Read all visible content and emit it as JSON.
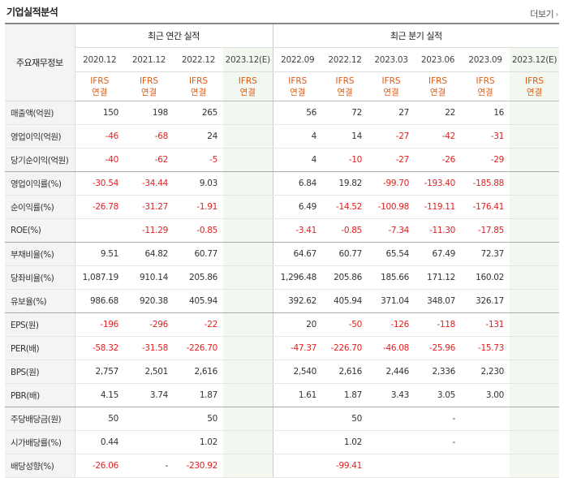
{
  "header": {
    "title": "기업실적분석",
    "more_label": "더보기",
    "more_arrow": "›"
  },
  "table": {
    "row_header_label": "주요재무정보",
    "annual_label": "최근 연간 실적",
    "quarter_label": "최근 분기 실적",
    "annual_dates": [
      "2020.12",
      "2021.12",
      "2022.12",
      "2023.12(E)"
    ],
    "quarter_dates": [
      "2022.09",
      "2022.12",
      "2023.03",
      "2023.06",
      "2023.09",
      "2023.12(E)"
    ],
    "ifrs_top": "IFRS",
    "ifrs_bottom": "연결",
    "rows": [
      {
        "label": "매출액(억원)",
        "values": [
          "150",
          "198",
          "265",
          "",
          "56",
          "72",
          "27",
          "22",
          "16",
          ""
        ]
      },
      {
        "label": "영업이익(억원)",
        "values": [
          "-46",
          "-68",
          "24",
          "",
          "4",
          "14",
          "-27",
          "-42",
          "-31",
          ""
        ]
      },
      {
        "label": "당기순이익(억원)",
        "values": [
          "-40",
          "-62",
          "-5",
          "",
          "4",
          "-10",
          "-27",
          "-26",
          "-29",
          ""
        ]
      },
      {
        "label": "영업이익률(%)",
        "values": [
          "-30.54",
          "-34.44",
          "9.03",
          "",
          "6.84",
          "19.82",
          "-99.70",
          "-193.40",
          "-185.88",
          ""
        ]
      },
      {
        "label": "순이익률(%)",
        "values": [
          "-26.78",
          "-31.27",
          "-1.91",
          "",
          "6.49",
          "-14.52",
          "-100.98",
          "-119.11",
          "-176.41",
          ""
        ]
      },
      {
        "label": "ROE(%)",
        "values": [
          "",
          "-11.29",
          "-0.85",
          "",
          "-3.41",
          "-0.85",
          "-7.34",
          "-11.30",
          "-17.85",
          ""
        ]
      },
      {
        "label": "부채비율(%)",
        "values": [
          "9.51",
          "64.82",
          "60.77",
          "",
          "64.67",
          "60.77",
          "65.54",
          "67.49",
          "72.37",
          ""
        ]
      },
      {
        "label": "당좌비율(%)",
        "values": [
          "1,087.19",
          "910.14",
          "205.86",
          "",
          "1,296.48",
          "205.86",
          "185.66",
          "171.12",
          "160.02",
          ""
        ]
      },
      {
        "label": "유보율(%)",
        "values": [
          "986.68",
          "920.38",
          "405.94",
          "",
          "392.62",
          "405.94",
          "371.04",
          "348.07",
          "326.17",
          ""
        ]
      },
      {
        "label": "EPS(원)",
        "values": [
          "-196",
          "-296",
          "-22",
          "",
          "20",
          "-50",
          "-126",
          "-118",
          "-131",
          ""
        ]
      },
      {
        "label": "PER(배)",
        "values": [
          "-58.32",
          "-31.58",
          "-226.70",
          "",
          "-47.37",
          "-226.70",
          "-46.08",
          "-25.96",
          "-15.73",
          ""
        ]
      },
      {
        "label": "BPS(원)",
        "values": [
          "2,757",
          "2,501",
          "2,616",
          "",
          "2,540",
          "2,616",
          "2,446",
          "2,336",
          "2,230",
          ""
        ]
      },
      {
        "label": "PBR(배)",
        "values": [
          "4.15",
          "3.74",
          "1.87",
          "",
          "1.61",
          "1.87",
          "3.43",
          "3.05",
          "3.00",
          ""
        ]
      },
      {
        "label": "주당배당금(원)",
        "values": [
          "50",
          "",
          "50",
          "",
          "",
          "50",
          "",
          "-",
          "",
          ""
        ]
      },
      {
        "label": "시가배당률(%)",
        "values": [
          "0.44",
          "",
          "1.02",
          "",
          "",
          "1.02",
          "",
          "-",
          "",
          ""
        ]
      },
      {
        "label": "배당성향(%)",
        "values": [
          "-26.06",
          "-",
          "-230.92",
          "",
          "",
          "-99.41",
          "",
          "",
          "",
          ""
        ]
      }
    ]
  }
}
